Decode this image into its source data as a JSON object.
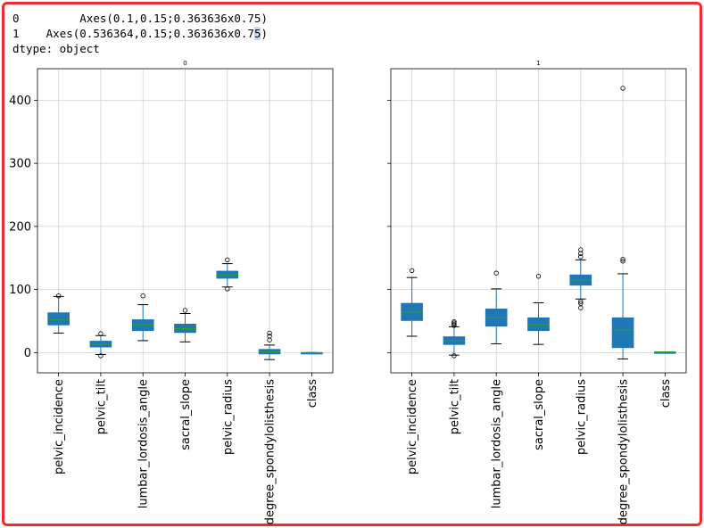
{
  "output": {
    "line1_index": "0",
    "line1_value": "Axes(0.1,0.15;0.363636x0.75)",
    "line2_index": "1",
    "line2_value_before": "Axes(0.536364,0.15;0.363636x0.7",
    "line2_value_highlight": "5",
    "line2_value_after": ")",
    "dtype_line": "dtype: object"
  },
  "colors": {
    "box_fill": "#1f77b4",
    "whisker": "#1f77b4",
    "median": "#2ca02c",
    "cap": "#000000",
    "grid": "#d0d0d0",
    "axes": "#000000",
    "border": "#ee2a2a"
  },
  "chart_data": [
    {
      "type": "boxplot",
      "title": "0",
      "categories": [
        "pelvic_incidence",
        "pelvic_tilt",
        "lumbar_lordosis_angle",
        "sacral_slope",
        "pelvic_radius",
        "degree_spondylolisthesis",
        "class"
      ],
      "ylim": [
        -32,
        450
      ],
      "yticks": [
        0,
        100,
        200,
        300,
        400
      ],
      "grid": true,
      "show_yticklabels": true,
      "boxes": [
        {
          "q1": 44,
          "median": 52,
          "q3": 63,
          "whislo": 31,
          "whishi": 89,
          "fliers": [
            90
          ]
        },
        {
          "q1": 9,
          "median": 13,
          "q3": 18,
          "whislo": -3,
          "whishi": 27,
          "fliers": [
            30,
            -5
          ]
        },
        {
          "q1": 35,
          "median": 44,
          "q3": 52,
          "whislo": 19,
          "whishi": 76,
          "fliers": [
            90
          ]
        },
        {
          "q1": 32,
          "median": 38,
          "q3": 45,
          "whislo": 17,
          "whishi": 62,
          "fliers": [
            67
          ]
        },
        {
          "q1": 118,
          "median": 123,
          "q3": 129,
          "whislo": 104,
          "whishi": 141,
          "fliers": [
            147,
            101
          ]
        },
        {
          "q1": -2,
          "median": 1,
          "q3": 5,
          "whislo": -11,
          "whishi": 12,
          "fliers": [
            20,
            26,
            31
          ]
        },
        {
          "q1": 0,
          "median": 0,
          "q3": 0,
          "whislo": 0,
          "whishi": 0,
          "fliers": []
        }
      ]
    },
    {
      "type": "boxplot",
      "title": "1",
      "categories": [
        "pelvic_incidence",
        "pelvic_tilt",
        "lumbar_lordosis_angle",
        "sacral_slope",
        "pelvic_radius",
        "degree_spondylolisthesis",
        "class"
      ],
      "ylim": [
        -32,
        450
      ],
      "yticks": [
        0,
        100,
        200,
        300,
        400
      ],
      "grid": true,
      "show_yticklabels": false,
      "boxes": [
        {
          "q1": 51,
          "median": 64,
          "q3": 78,
          "whislo": 26,
          "whishi": 119,
          "fliers": [
            130
          ]
        },
        {
          "q1": 13,
          "median": 19,
          "q3": 25,
          "whislo": -4,
          "whishi": 41,
          "fliers": [
            43,
            45,
            47,
            49,
            -5
          ]
        },
        {
          "q1": 42,
          "median": 56,
          "q3": 69,
          "whislo": 14,
          "whishi": 101,
          "fliers": [
            126
          ]
        },
        {
          "q1": 35,
          "median": 44,
          "q3": 55,
          "whislo": 13,
          "whishi": 79,
          "fliers": [
            121
          ]
        },
        {
          "q1": 107,
          "median": 115,
          "q3": 123,
          "whislo": 85,
          "whishi": 147,
          "fliers": [
            152,
            157,
            163,
            81,
            78,
            71
          ]
        },
        {
          "q1": 8,
          "median": 36,
          "q3": 55,
          "whislo": -10,
          "whishi": 125,
          "fliers": [
            145,
            148,
            419
          ]
        },
        {
          "q1": 1,
          "median": 1,
          "q3": 1,
          "whislo": 1,
          "whishi": 1,
          "fliers": []
        }
      ]
    }
  ]
}
